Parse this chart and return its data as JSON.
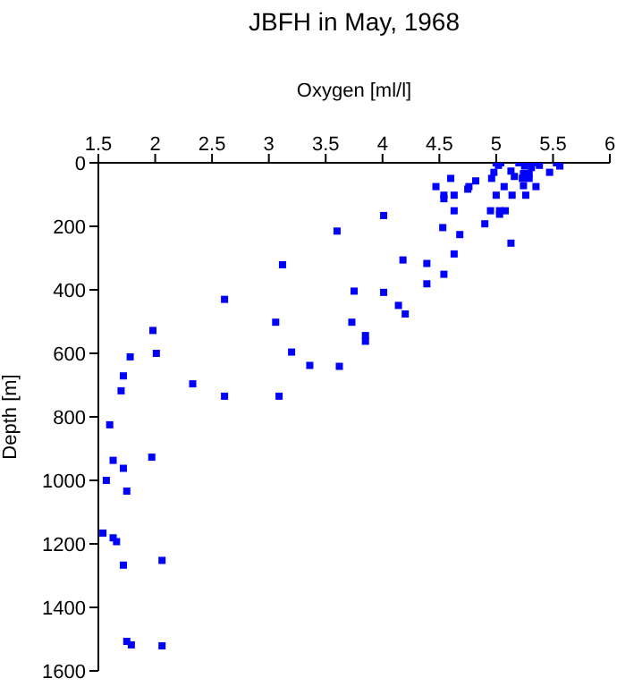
{
  "chart_data": {
    "type": "scatter",
    "title": "JBFH in May, 1968",
    "xlabel": "Oxygen [ml/l]",
    "ylabel": "Depth [m]",
    "xlim": [
      1.5,
      6
    ],
    "xticks": [
      1.5,
      2,
      2.5,
      3,
      3.5,
      4,
      4.5,
      5,
      5.5,
      6
    ],
    "ylim": [
      1600,
      0
    ],
    "yticks": [
      0,
      200,
      400,
      600,
      800,
      1000,
      1200,
      1400,
      1600
    ],
    "grid": false,
    "legend": false,
    "marker": "square",
    "series": [
      {
        "color": "#0000ff",
        "x": [
          5.0,
          5.02,
          5.04,
          5.2,
          5.25,
          5.29,
          5.31,
          5.35,
          5.38,
          5.53,
          5.56,
          5.47,
          5.13,
          5.16,
          5.24,
          5.29,
          5.23,
          5.29,
          5.24,
          5.35,
          5.07,
          4.96,
          4.98,
          4.6,
          4.82,
          4.76,
          4.75,
          4.47,
          4.54,
          4.54,
          4.63,
          5.0,
          5.14,
          5.26,
          4.95,
          5.03,
          5.08,
          5.03,
          4.63,
          4.9,
          4.53,
          4.68,
          5.13,
          4.01,
          3.6,
          4.63,
          4.18,
          4.39,
          4.54,
          4.39,
          3.12,
          3.75,
          4.01,
          2.61,
          4.14,
          4.2,
          3.06,
          3.73,
          1.98,
          3.85,
          3.85,
          2.01,
          1.78,
          3.2,
          3.36,
          3.62,
          1.72,
          2.33,
          1.7,
          2.61,
          3.09,
          1.6,
          1.97,
          1.63,
          1.72,
          1.57,
          1.75,
          1.54,
          1.63,
          1.66,
          1.72,
          2.06,
          1.75,
          1.79,
          2.06
        ],
        "values": [
          0,
          8,
          0,
          0,
          10,
          8,
          15,
          0,
          8,
          0,
          10,
          30,
          26,
          43,
          34,
          34,
          49,
          49,
          72,
          75,
          75,
          49,
          30,
          49,
          57,
          75,
          83,
          75,
          102,
          113,
          102,
          102,
          102,
          102,
          151,
          151,
          151,
          162,
          151,
          192,
          204,
          226,
          253,
          166,
          215,
          287,
          306,
          317,
          351,
          381,
          321,
          404,
          408,
          430,
          449,
          476,
          502,
          502,
          528,
          544,
          562,
          600,
          611,
          596,
          638,
          641,
          671,
          696,
          718,
          735,
          735,
          825,
          927,
          937,
          962,
          1000,
          1034,
          1166,
          1181,
          1193,
          1267,
          1252,
          1507,
          1518,
          1521
        ]
      }
    ]
  }
}
